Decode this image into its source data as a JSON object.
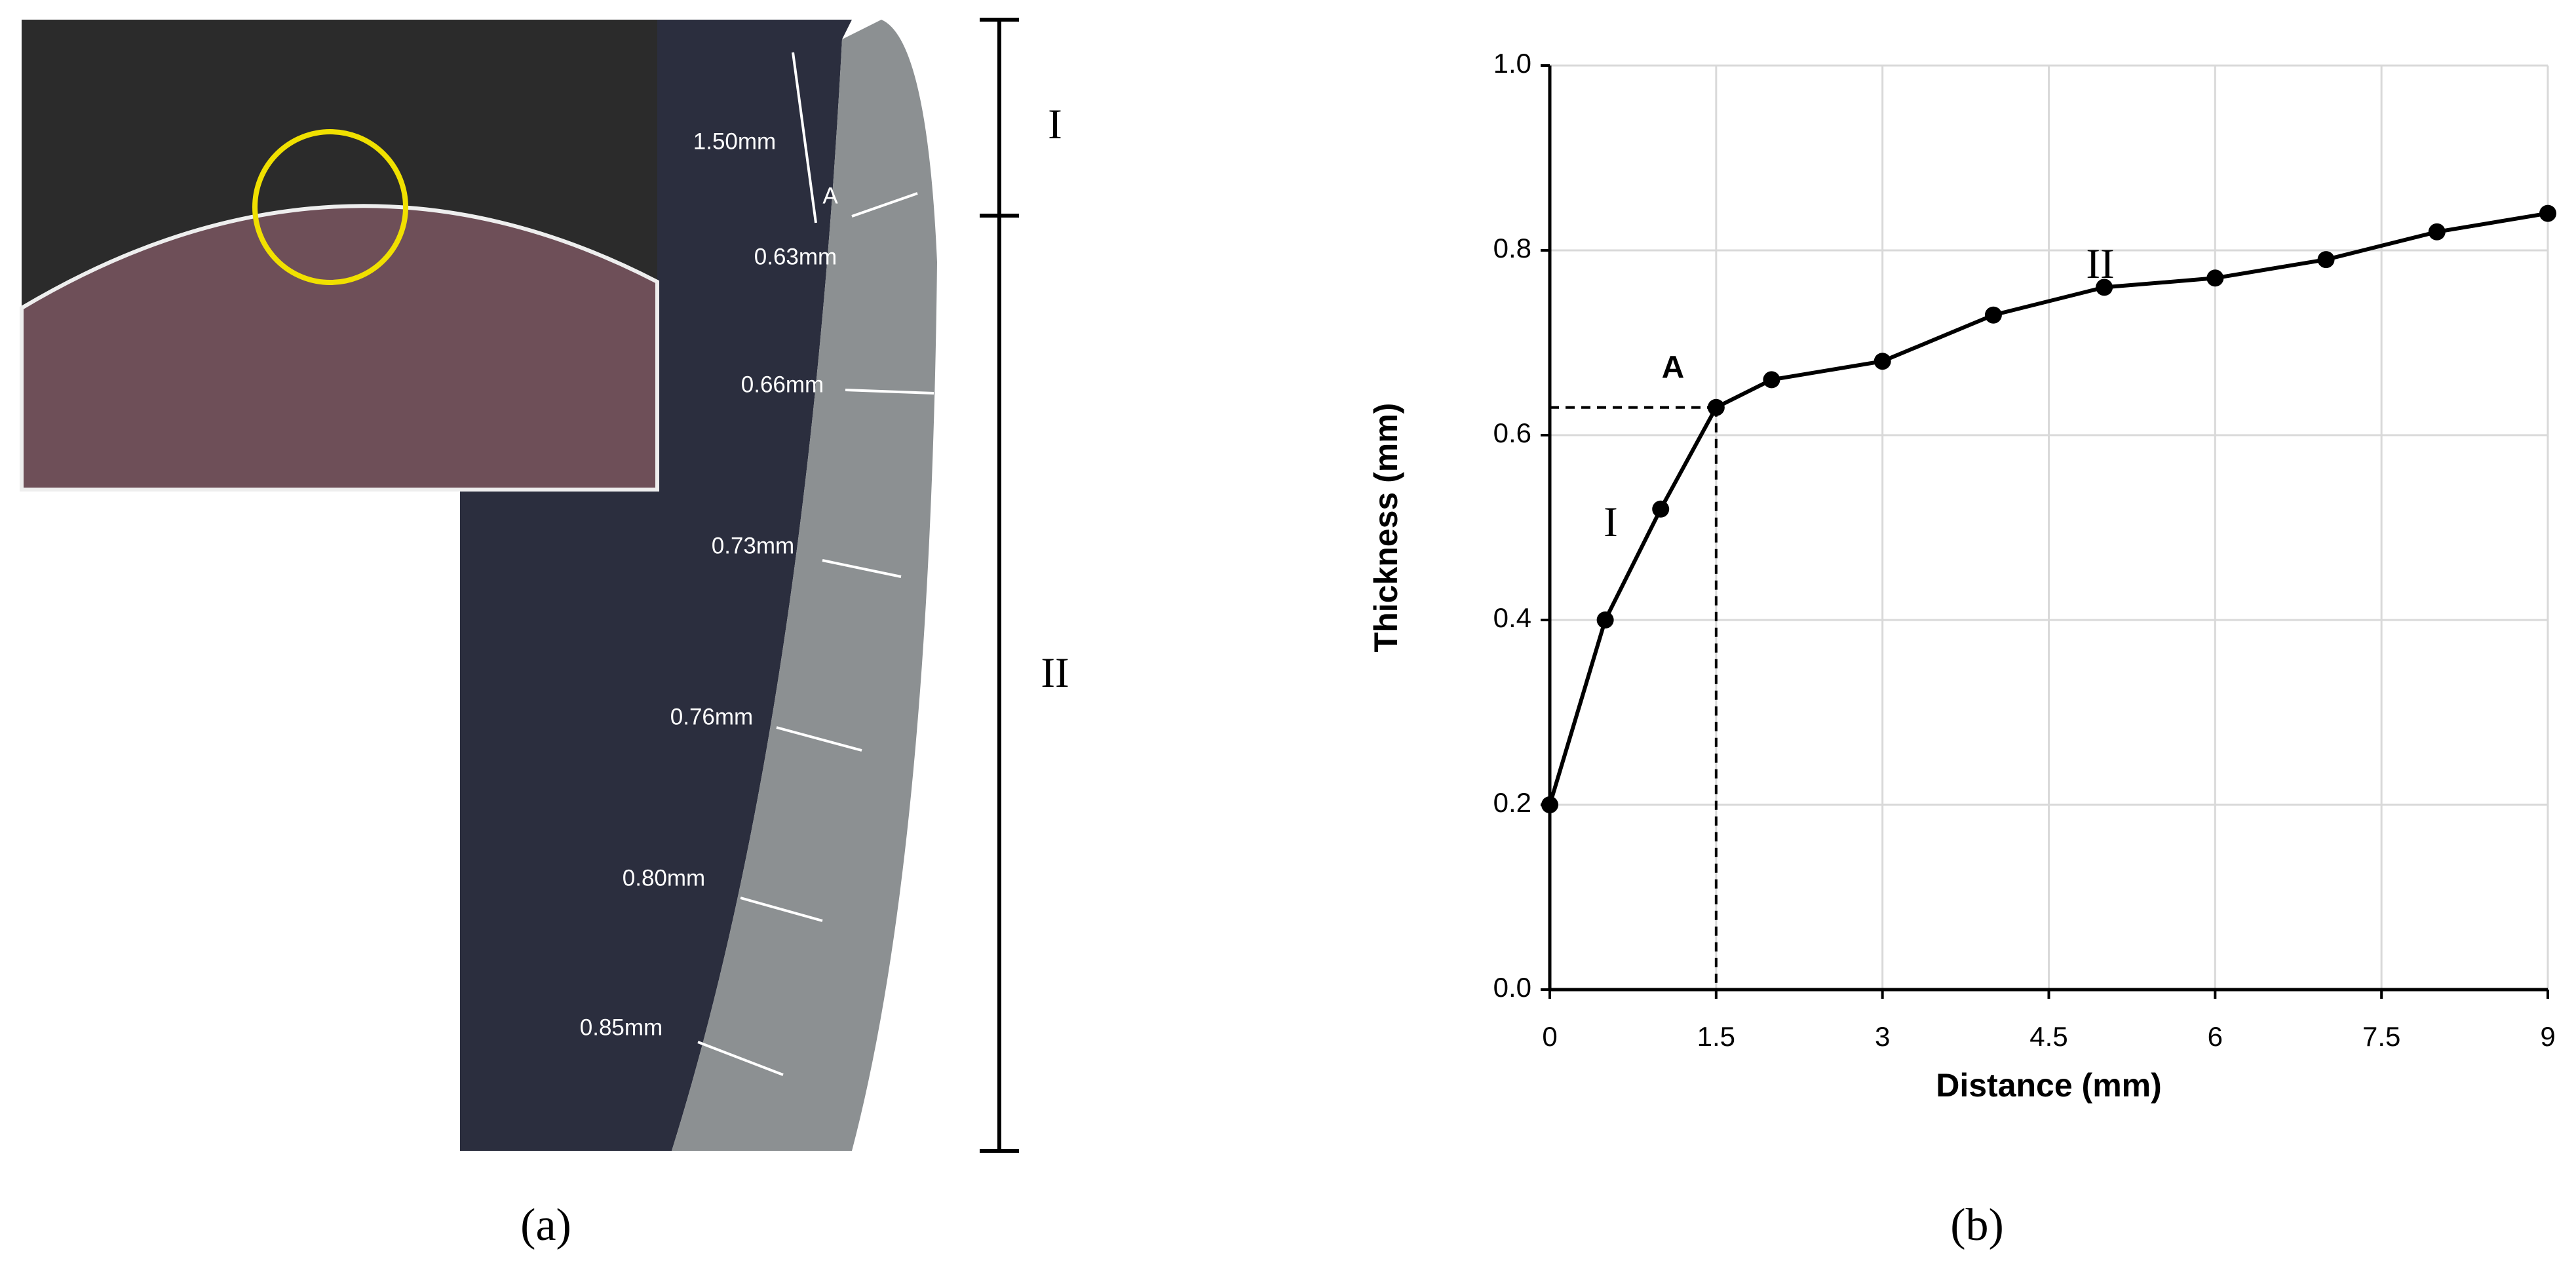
{
  "panel_a": {
    "measurements": [
      "1.50mm",
      "0.63mm",
      "0.66mm",
      "0.73mm",
      "0.76mm",
      "0.80mm",
      "0.85mm"
    ],
    "point_label": "A",
    "zones": [
      "I",
      "II"
    ],
    "caption": "(a)"
  },
  "panel_b_caption": "(b)",
  "chart_data": {
    "type": "line",
    "x_label": "Distance (mm)",
    "y_label": "Thickness (mm)",
    "x": [
      0,
      0.5,
      1,
      1.5,
      2,
      3,
      4,
      5,
      6,
      7,
      8,
      9
    ],
    "values": [
      0.2,
      0.4,
      0.52,
      0.63,
      0.66,
      0.68,
      0.73,
      0.76,
      0.77,
      0.79,
      0.82,
      0.84
    ],
    "color": "#000000",
    "xlim": [
      0,
      9
    ],
    "xticks": [
      0,
      1.5,
      3,
      4.5,
      6,
      7.5,
      9
    ],
    "ylim": [
      0,
      1
    ],
    "yticks": [
      {
        "value": 0,
        "label": "0.0"
      },
      0.2,
      0.4,
      0.6,
      0.8,
      {
        "value": 1,
        "label": "1.0"
      }
    ],
    "grid": true,
    "annotations": [
      "A",
      "I",
      "II"
    ]
  }
}
